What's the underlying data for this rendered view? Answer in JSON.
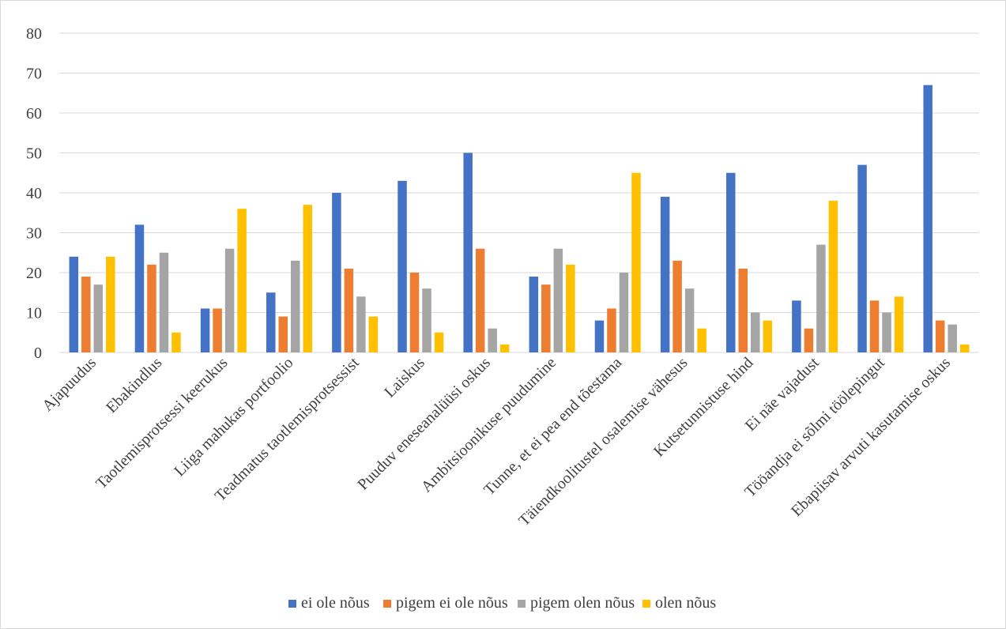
{
  "chart_data": {
    "type": "bar",
    "title": "",
    "xlabel": "",
    "ylabel": "",
    "ylim": [
      0,
      80
    ],
    "y_ticks": [
      0,
      10,
      20,
      30,
      40,
      50,
      60,
      70,
      80
    ],
    "grid": true,
    "legend_position": "bottom",
    "categories": [
      "Ajapuudus",
      "Ebakindlus",
      "Taotlemisprotsessi keerukus",
      "Liiga mahukas portfoolio",
      "Teadmatus taotlemisprotsessist",
      "Laiskus",
      "Puuduv eneseanalüüsi oskus",
      "Ambitsioonikuse puudumine",
      "Tunne, et ei pea end tõestama",
      "Täiendkoolitustel osalemise vähesus",
      "Kutsetunnistuse hind",
      "Ei näe vajadust",
      "Tööandja ei sõlmi töölepingut",
      "Ebapiisav arvuti kasutamise oskus"
    ],
    "series": [
      {
        "name": "ei ole nõus",
        "color": "#4472c4",
        "values": [
          24,
          32,
          11,
          15,
          40,
          43,
          50,
          19,
          8,
          39,
          45,
          13,
          47,
          67
        ]
      },
      {
        "name": "pigem ei ole nõus",
        "color": "#ed7d31",
        "values": [
          19,
          22,
          11,
          9,
          21,
          20,
          26,
          17,
          11,
          23,
          21,
          6,
          13,
          8
        ]
      },
      {
        "name": "pigem olen nõus",
        "color": "#a5a5a5",
        "values": [
          17,
          25,
          26,
          23,
          14,
          16,
          6,
          26,
          20,
          16,
          10,
          27,
          10,
          7
        ]
      },
      {
        "name": "olen nõus",
        "color": "#ffc000",
        "values": [
          24,
          5,
          36,
          37,
          9,
          5,
          2,
          22,
          45,
          6,
          8,
          38,
          14,
          2
        ]
      }
    ]
  }
}
